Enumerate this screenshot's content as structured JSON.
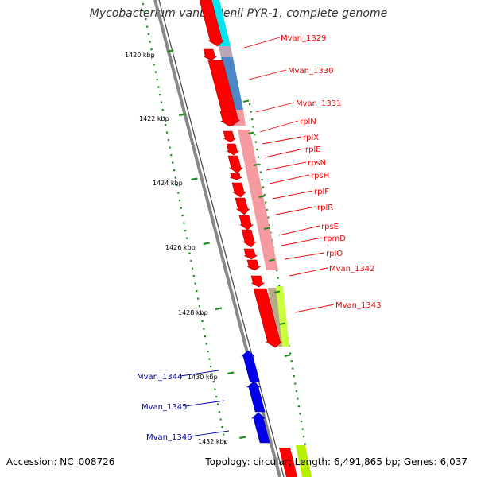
{
  "title": "Mycobacterium vanbaalenii PYR-1, complete genome",
  "footer": {
    "accession": "Accession: NC_008726",
    "summary": "Topology: circular; Length: 6,491,865 bp; Genes: 6,037"
  },
  "colors": {
    "forward_label": "#ee0000",
    "reverse_label": "#0000aa",
    "forward_gene": "#ff0000",
    "reverse_gene": "#0000ee",
    "backbone": "#888888",
    "tick": "#228b22"
  },
  "tick_labels": [
    "1420 kbp",
    "1422 kbp",
    "1424 kbp",
    "1426 kbp",
    "1428 kbp",
    "1430 kbp",
    "1432 kbp"
  ],
  "forward_genes": [
    {
      "name": "Mvan_1329"
    },
    {
      "name": "Mvan_1330"
    },
    {
      "name": "Mvan_1331"
    },
    {
      "name": "rplN"
    },
    {
      "name": "rplX"
    },
    {
      "name": "rplE"
    },
    {
      "name": "rpsN"
    },
    {
      "name": "rpsH"
    },
    {
      "name": "rplF"
    },
    {
      "name": "rplR"
    },
    {
      "name": "rpsE"
    },
    {
      "name": "rpmD"
    },
    {
      "name": "rplO"
    },
    {
      "name": "Mvan_1342"
    },
    {
      "name": "Mvan_1343"
    }
  ],
  "reverse_genes": [
    {
      "name": "Mvan_1344"
    },
    {
      "name": "Mvan_1345"
    },
    {
      "name": "Mvan_1346"
    }
  ]
}
